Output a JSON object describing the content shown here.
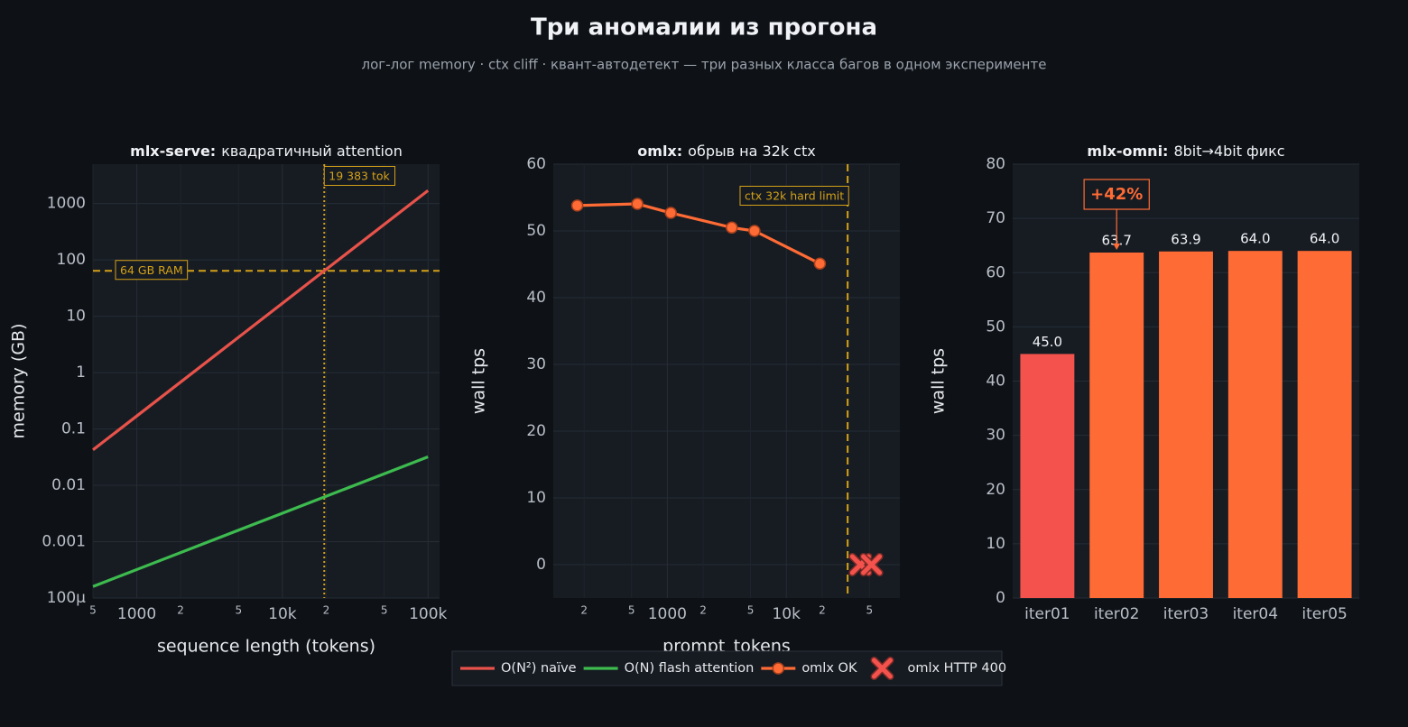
{
  "header": {
    "title": "Три аномалии из прогона",
    "subtitle": "лог-лог memory · ctx cliff · квант-автодетект — три разных класса багов в одном эксперименте"
  },
  "chart_data": [
    {
      "type": "line",
      "title_bold": "mlx-serve:",
      "title": "квадратичный attention",
      "xlabel": "sequence length (tokens)",
      "ylabel": "memory (GB)",
      "xscale": "log",
      "yscale": "log",
      "grid": true,
      "xlim": [
        500,
        120000
      ],
      "ylim": [
        0.0001,
        5000
      ],
      "xticks": [
        {
          "value": 500,
          "label": "5"
        },
        1000,
        {
          "value": 2000,
          "label": "2"
        },
        {
          "value": 5000,
          "label": "5"
        },
        {
          "value": 10000,
          "label": "10k"
        },
        {
          "value": 20000,
          "label": "2"
        },
        {
          "value": 50000,
          "label": "5"
        },
        {
          "value": 100000,
          "label": "100k"
        }
      ],
      "yticks": [
        {
          "value": 0.0001,
          "label": "100µ"
        },
        0.001,
        0.01,
        0.1,
        1,
        10,
        100,
        1000
      ],
      "series": [
        {
          "name": "O(N²) naïve",
          "color": "#e8524a",
          "marker": "none",
          "x": [
            500,
            1000,
            10000,
            19383,
            100000
          ],
          "values": [
            0.0426,
            0.17,
            17,
            64,
            1703
          ]
        },
        {
          "name": "O(N) flash attention",
          "color": "#3dbb4e",
          "marker": "none",
          "x": [
            500,
            1000,
            10000,
            19383,
            100000
          ],
          "values": [
            0.00016,
            0.00032,
            0.0032,
            0.0062,
            0.032
          ]
        }
      ],
      "hlines": [
        {
          "value": 64,
          "label": "64 GB RAM",
          "color": "#d4a017",
          "style": "dashed"
        }
      ],
      "vlines": [
        {
          "value": 19383,
          "label": "19 383 tok",
          "color": "#d4a017",
          "style": "dotted"
        }
      ]
    },
    {
      "type": "line",
      "title_bold": "omlx:",
      "title": "обрыв на 32k ctx",
      "xlabel": "prompt_tokens",
      "ylabel": "wall tps",
      "xscale": "log",
      "yscale": "linear",
      "grid": true,
      "xlim": [
        110,
        90000
      ],
      "ylim": [
        -5,
        60
      ],
      "xticks": [
        {
          "value": 200,
          "label": "2"
        },
        {
          "value": 500,
          "label": "5"
        },
        1000,
        {
          "value": 2000,
          "label": "2"
        },
        {
          "value": 5000,
          "label": "5"
        },
        {
          "value": 10000,
          "label": "10k"
        },
        {
          "value": 20000,
          "label": "2"
        },
        {
          "value": 50000,
          "label": "5"
        }
      ],
      "yticks": [
        0,
        10,
        20,
        30,
        40,
        50,
        60
      ],
      "series": [
        {
          "name": "omlx OK",
          "color": "#ff6b35",
          "marker": "o",
          "x": [
            175,
            560,
            1070,
            3480,
            5400,
            19150
          ],
          "values": [
            53.8,
            54.05,
            52.7,
            50.5,
            50.0,
            45.1
          ]
        },
        {
          "name": "omlx HTTP 400",
          "color": "#f4524d",
          "marker": "x",
          "x": [
            42000,
            52000
          ],
          "values": [
            0,
            0
          ]
        }
      ],
      "vlines": [
        {
          "value": 32768,
          "label": "ctx 32k hard limit",
          "color": "#d4a017",
          "style": "dashed"
        }
      ]
    },
    {
      "type": "bar",
      "title_bold": "mlx-omni:",
      "title": "8bit→4bit фикс",
      "ylabel": "wall tps",
      "yscale": "linear",
      "grid": true,
      "ylim": [
        0,
        80
      ],
      "yticks": [
        0,
        10,
        20,
        30,
        40,
        50,
        60,
        70,
        80
      ],
      "categories": [
        "iter01",
        "iter02",
        "iter03",
        "iter04",
        "iter05"
      ],
      "values": [
        45.0,
        63.7,
        63.9,
        64.0,
        64.0
      ],
      "value_labels": [
        "45.0",
        "63.7",
        "63.9",
        "64.0",
        "64.0"
      ],
      "colors": [
        "#f4524d",
        "#ff6b35",
        "#ff6b35",
        "#ff6b35",
        "#ff6b35"
      ],
      "annotations": [
        {
          "label": "+42%",
          "category": "iter02",
          "color": "#ff6b35"
        }
      ]
    }
  ]
}
